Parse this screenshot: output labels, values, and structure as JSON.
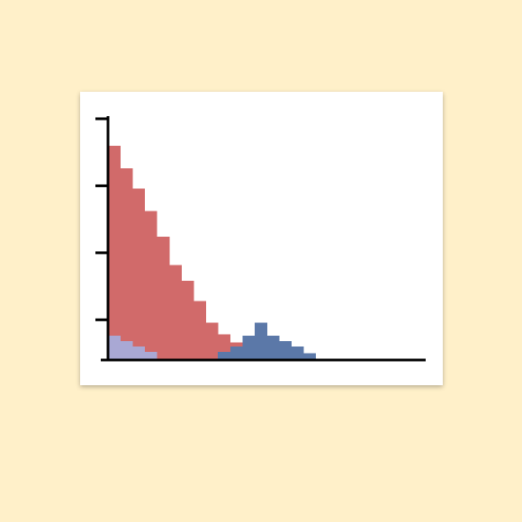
{
  "colors": {
    "page_background": "#fff0c9",
    "card_background": "#ffffff",
    "axis": "#000000"
  },
  "chart_data": {
    "type": "bar",
    "subtype": "histogram",
    "title": "",
    "xlabel": "",
    "ylabel": "",
    "x_bin_width": 1,
    "xlim": [
      0,
      26
    ],
    "ylim": [
      0,
      18.2
    ],
    "yticks": [
      3,
      8,
      13,
      18
    ],
    "ytick_labels_visible": false,
    "xticks_visible": false,
    "grid": false,
    "legend": "none",
    "series": [
      {
        "color": "#d16a6a",
        "bin_start": 0,
        "values": [
          16,
          14.3,
          12.8,
          11.1,
          9.2,
          7.1,
          5.9,
          4.4,
          2.8,
          1.9,
          1.3,
          1.1
        ]
      },
      {
        "color": "#5b78a8",
        "bin_start": 9,
        "values": [
          0.6,
          1.0,
          1.8,
          2.8,
          1.8,
          1.4,
          1.0,
          0.5
        ]
      },
      {
        "color": "#a9a8d4",
        "bin_start": 0,
        "values": [
          1.8,
          1.4,
          1.0,
          0.6
        ]
      }
    ]
  }
}
